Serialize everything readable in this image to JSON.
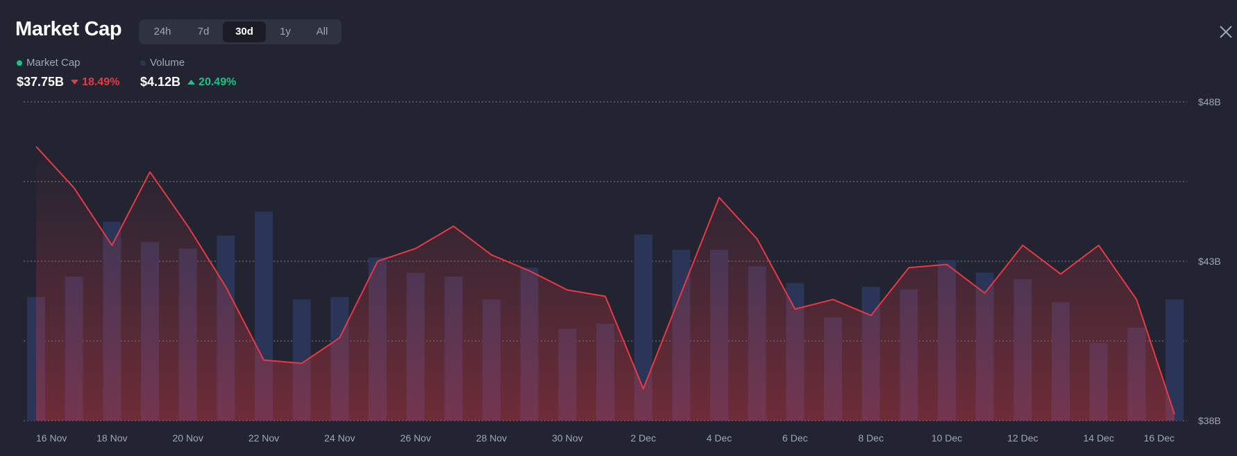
{
  "header": {
    "title": "Market Cap",
    "tabs": [
      "24h",
      "7d",
      "30d",
      "1y",
      "All"
    ],
    "active_tab": "30d"
  },
  "legend": {
    "market_cap": {
      "label": "Market Cap",
      "value": "$37.75B",
      "change": "18.49%",
      "direction": "down",
      "dot_color": "#16c784"
    },
    "volume": {
      "label": "Volume",
      "value": "$4.12B",
      "change": "20.49%",
      "direction": "up",
      "dot_color": "#2a3557"
    }
  },
  "colors": {
    "line": "#ea3943",
    "down": "#ea3943",
    "up": "#16c784",
    "volume_bar": "#2b3557"
  },
  "chart_data": {
    "type": "line",
    "x_ticks": [
      "16 Nov",
      "18 Nov",
      "20 Nov",
      "22 Nov",
      "24 Nov",
      "26 Nov",
      "28 Nov",
      "30 Nov",
      "2 Dec",
      "4 Dec",
      "6 Dec",
      "8 Dec",
      "10 Dec",
      "12 Dec",
      "14 Dec",
      "16 Dec"
    ],
    "y_ticks": [
      "$48B",
      "$43B",
      "$38B"
    ],
    "ylim": [
      38,
      48
    ],
    "y_unit": "billion USD",
    "grid": true,
    "market_cap": [
      46.6,
      45.3,
      43.5,
      45.8,
      44.1,
      42.2,
      39.9,
      39.8,
      40.6,
      43.0,
      43.4,
      44.1,
      43.2,
      42.7,
      42.1,
      41.9,
      39.0,
      42.0,
      45.0,
      43.7,
      41.5,
      41.8,
      41.3,
      42.8,
      42.9,
      42.0,
      43.5,
      42.6,
      43.5,
      41.8,
      38.2
    ],
    "volume": [
      9.7,
      11.3,
      15.6,
      14.0,
      13.5,
      14.5,
      16.4,
      9.5,
      9.7,
      12.8,
      11.6,
      11.3,
      9.5,
      12.0,
      7.2,
      7.6,
      14.6,
      13.4,
      13.4,
      12.1,
      10.8,
      8.1,
      10.5,
      10.3,
      12.6,
      11.6,
      11.1,
      9.3,
      6.1,
      7.3,
      9.5
    ],
    "volume_scale_max": 25
  }
}
